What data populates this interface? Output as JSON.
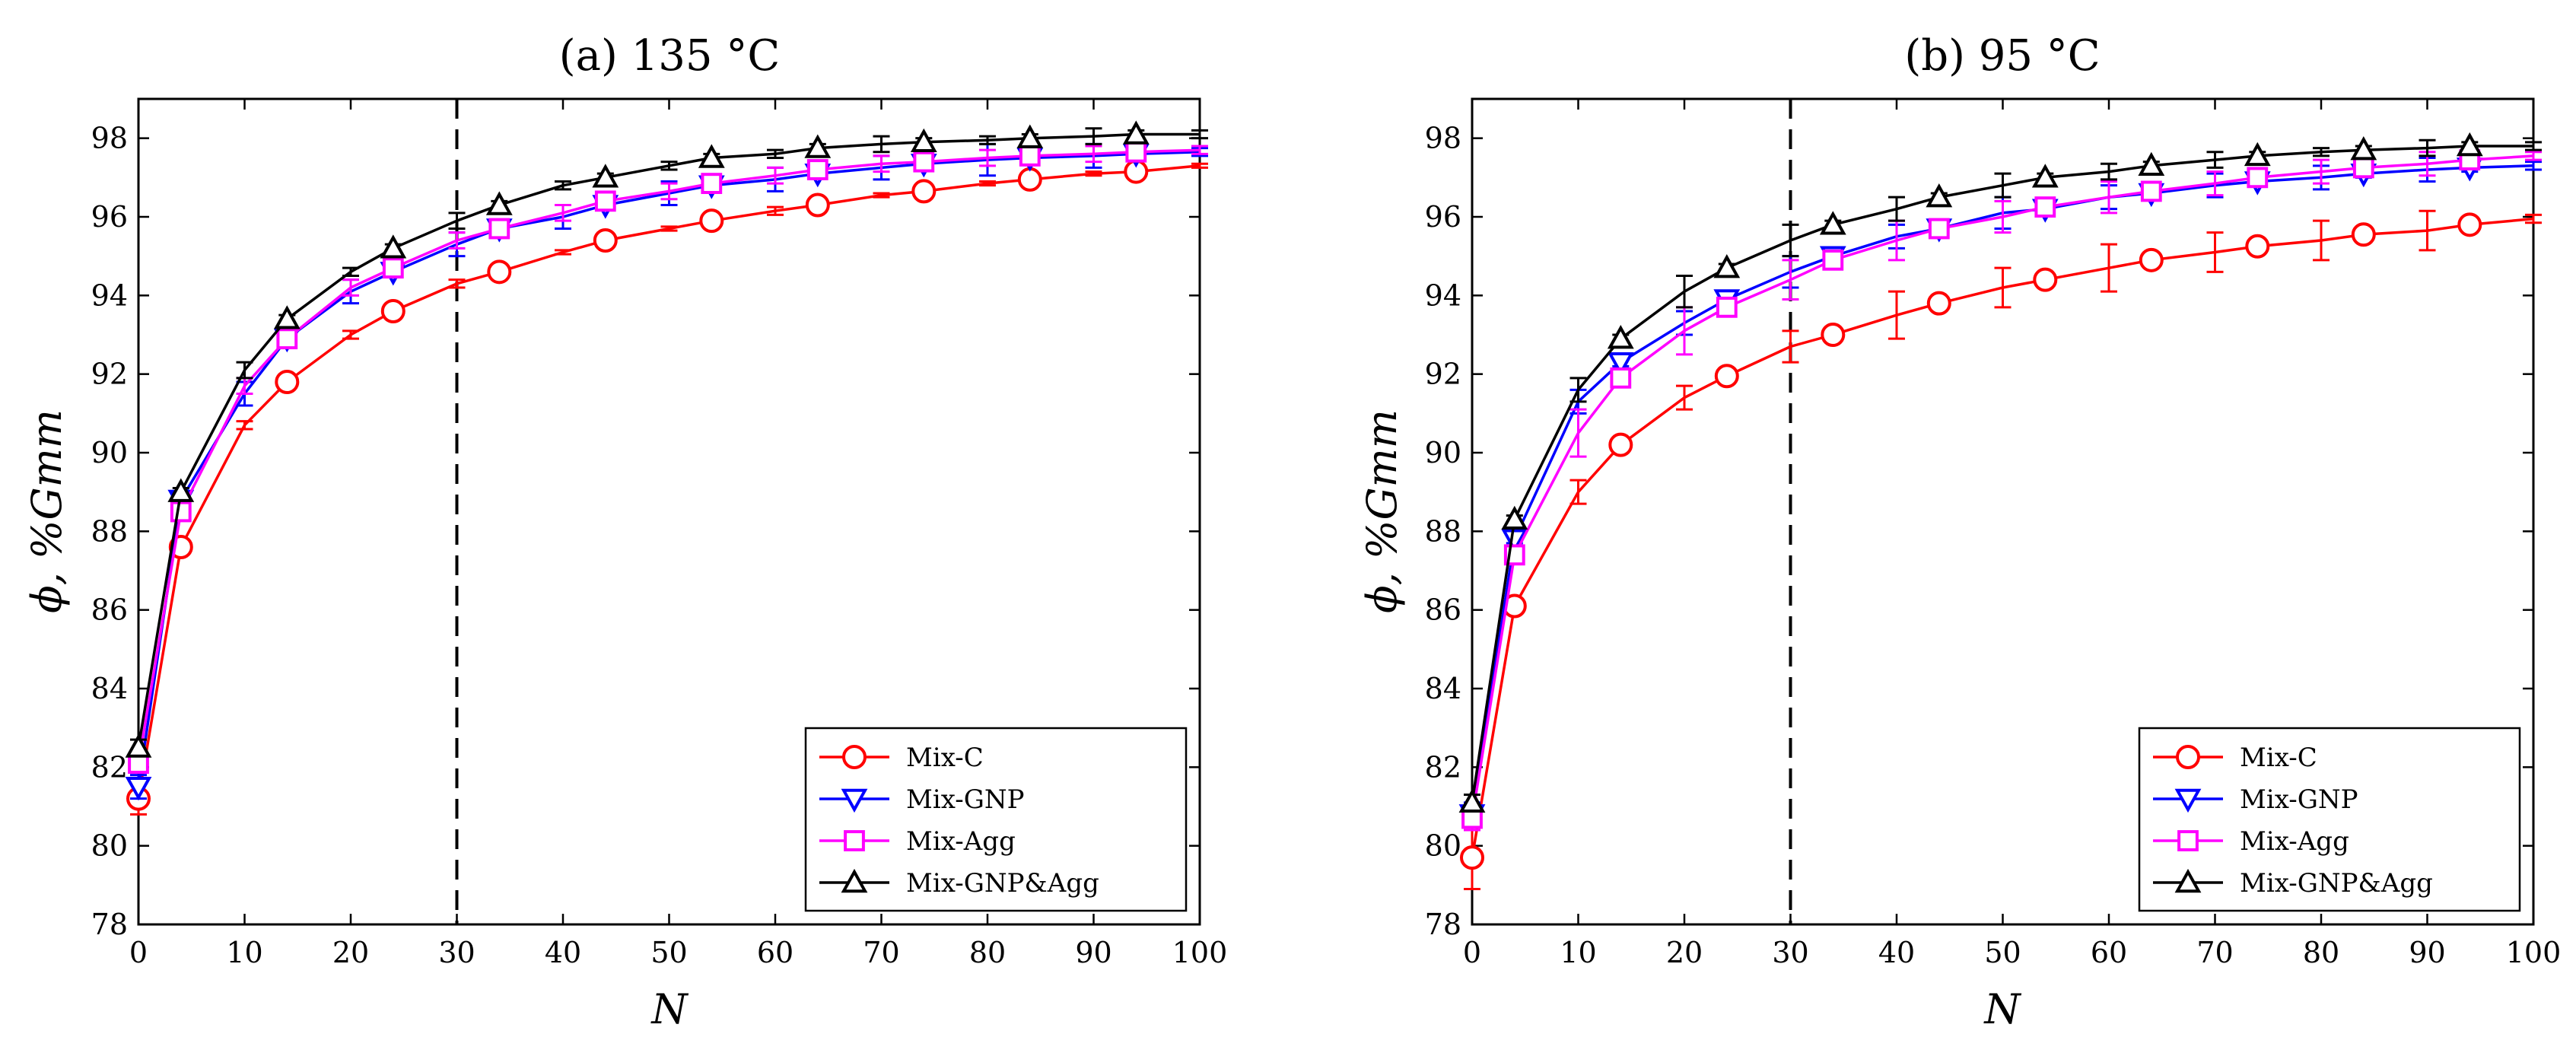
{
  "chart_data": [
    {
      "type": "line",
      "title": "(a) 135 °C",
      "xlabel": "N",
      "ylabel": "ϕ, %Gmm",
      "xlim": [
        0,
        100
      ],
      "ylim": [
        78,
        99
      ],
      "xticks": [
        0,
        10,
        20,
        30,
        40,
        50,
        60,
        70,
        80,
        90,
        100
      ],
      "yticks": [
        78,
        80,
        82,
        84,
        86,
        88,
        90,
        92,
        94,
        96,
        98
      ],
      "reference_line_x": 30,
      "legend_position": "bottom-right",
      "series": [
        {
          "name": "Mix-C",
          "color": "#ff0000",
          "marker": "circle",
          "x": [
            0,
            4,
            10,
            14,
            20,
            24,
            30,
            34,
            40,
            44,
            50,
            54,
            60,
            64,
            70,
            74,
            80,
            84,
            90,
            94,
            100
          ],
          "y": [
            81.2,
            87.6,
            90.7,
            91.8,
            93.0,
            93.6,
            94.3,
            94.6,
            95.1,
            95.4,
            95.7,
            95.9,
            96.15,
            96.3,
            96.55,
            96.65,
            96.85,
            96.95,
            97.1,
            97.15,
            97.3
          ],
          "err": [
            0.4,
            0.1,
            0.1,
            0.05,
            0.1,
            0.05,
            0.1,
            0.05,
            0.05,
            0.05,
            0.05,
            0.05,
            0.1,
            0.05,
            0.05,
            0.05,
            0.05,
            0.05,
            0.05,
            0.05,
            0.05
          ]
        },
        {
          "name": "Mix-GNP",
          "color": "#0000ff",
          "marker": "triangle-down",
          "x": [
            0,
            4,
            10,
            14,
            20,
            24,
            30,
            34,
            40,
            44,
            50,
            54,
            60,
            64,
            70,
            74,
            80,
            84,
            90,
            94,
            100
          ],
          "y": [
            81.5,
            88.8,
            91.5,
            92.9,
            94.1,
            94.6,
            95.3,
            95.7,
            96.0,
            96.3,
            96.6,
            96.8,
            96.95,
            97.1,
            97.25,
            97.35,
            97.45,
            97.5,
            97.55,
            97.6,
            97.65
          ],
          "err": [
            0.3,
            0.1,
            0.3,
            0.1,
            0.3,
            0.1,
            0.3,
            0.1,
            0.3,
            0.1,
            0.3,
            0.1,
            0.3,
            0.1,
            0.3,
            0.1,
            0.4,
            0.1,
            0.3,
            0.1,
            0.1
          ]
        },
        {
          "name": "Mix-Agg",
          "color": "#ff00ff",
          "marker": "square",
          "x": [
            0,
            4,
            10,
            14,
            20,
            24,
            30,
            34,
            40,
            44,
            50,
            54,
            60,
            64,
            70,
            74,
            80,
            84,
            90,
            94,
            100
          ],
          "y": [
            82.1,
            88.5,
            91.7,
            92.9,
            94.2,
            94.7,
            95.4,
            95.7,
            96.1,
            96.4,
            96.65,
            96.85,
            97.05,
            97.2,
            97.35,
            97.4,
            97.5,
            97.55,
            97.6,
            97.65,
            97.7
          ],
          "err": [
            0.2,
            0.1,
            0.2,
            0.1,
            0.2,
            0.1,
            0.2,
            0.1,
            0.2,
            0.1,
            0.2,
            0.1,
            0.2,
            0.1,
            0.2,
            0.1,
            0.2,
            0.1,
            0.2,
            0.1,
            0.1
          ]
        },
        {
          "name": "Mix-GNP&Agg",
          "color": "#000000",
          "marker": "triangle-up",
          "x": [
            0,
            4,
            10,
            14,
            20,
            24,
            30,
            34,
            40,
            44,
            50,
            54,
            60,
            64,
            70,
            74,
            80,
            84,
            90,
            94,
            100
          ],
          "y": [
            82.5,
            89.0,
            92.1,
            93.4,
            94.6,
            95.2,
            95.9,
            96.3,
            96.8,
            97.0,
            97.3,
            97.5,
            97.6,
            97.75,
            97.85,
            97.9,
            97.95,
            98.0,
            98.05,
            98.1,
            98.1
          ],
          "err": [
            0.2,
            0.1,
            0.2,
            0.1,
            0.1,
            0.1,
            0.2,
            0.1,
            0.1,
            0.1,
            0.1,
            0.1,
            0.1,
            0.1,
            0.2,
            0.1,
            0.1,
            0.1,
            0.2,
            0.1,
            0.1
          ]
        }
      ]
    },
    {
      "type": "line",
      "title": "(b) 95 °C",
      "xlabel": "N",
      "ylabel": "ϕ, %Gmm",
      "xlim": [
        0,
        100
      ],
      "ylim": [
        78,
        99
      ],
      "xticks": [
        0,
        10,
        20,
        30,
        40,
        50,
        60,
        70,
        80,
        90,
        100
      ],
      "yticks": [
        78,
        80,
        82,
        84,
        86,
        88,
        90,
        92,
        94,
        96,
        98
      ],
      "reference_line_x": 30,
      "legend_position": "bottom-right",
      "series": [
        {
          "name": "Mix-C",
          "color": "#ff0000",
          "marker": "circle",
          "x": [
            0,
            4,
            10,
            14,
            20,
            24,
            30,
            34,
            40,
            44,
            50,
            54,
            60,
            64,
            70,
            74,
            80,
            84,
            90,
            94,
            100
          ],
          "y": [
            79.7,
            86.1,
            89.0,
            90.2,
            91.4,
            91.95,
            92.7,
            93.0,
            93.5,
            93.8,
            94.2,
            94.4,
            94.7,
            94.9,
            95.1,
            95.25,
            95.4,
            95.55,
            95.65,
            95.8,
            95.95
          ],
          "err": [
            0.8,
            0.1,
            0.3,
            0.1,
            0.3,
            0.1,
            0.4,
            0.1,
            0.6,
            0.1,
            0.5,
            0.1,
            0.6,
            0.1,
            0.5,
            0.1,
            0.5,
            0.1,
            0.5,
            0.1,
            0.1
          ]
        },
        {
          "name": "Mix-GNP",
          "color": "#0000ff",
          "marker": "triangle-down",
          "x": [
            0,
            4,
            10,
            14,
            20,
            24,
            30,
            34,
            40,
            44,
            50,
            54,
            60,
            64,
            70,
            74,
            80,
            84,
            90,
            94,
            100
          ],
          "y": [
            80.8,
            87.8,
            91.3,
            92.3,
            93.3,
            93.9,
            94.6,
            95.0,
            95.5,
            95.7,
            96.1,
            96.2,
            96.5,
            96.6,
            96.8,
            96.9,
            97.0,
            97.1,
            97.2,
            97.25,
            97.3
          ],
          "err": [
            0.3,
            0.1,
            0.3,
            0.1,
            0.3,
            0.1,
            0.4,
            0.1,
            0.3,
            0.1,
            0.4,
            0.1,
            0.3,
            0.1,
            0.3,
            0.1,
            0.3,
            0.1,
            0.3,
            0.1,
            0.1
          ]
        },
        {
          "name": "Mix-Agg",
          "color": "#ff00ff",
          "marker": "square",
          "x": [
            0,
            4,
            10,
            14,
            20,
            24,
            30,
            34,
            40,
            44,
            50,
            54,
            60,
            64,
            70,
            74,
            80,
            84,
            90,
            94,
            100
          ],
          "y": [
            80.7,
            87.4,
            90.5,
            91.9,
            93.1,
            93.7,
            94.4,
            94.9,
            95.4,
            95.7,
            96.0,
            96.25,
            96.5,
            96.65,
            96.85,
            97.0,
            97.15,
            97.25,
            97.35,
            97.45,
            97.55
          ],
          "err": [
            0.3,
            0.1,
            0.6,
            0.1,
            0.6,
            0.1,
            0.5,
            0.1,
            0.5,
            0.1,
            0.4,
            0.1,
            0.4,
            0.1,
            0.3,
            0.1,
            0.3,
            0.1,
            0.3,
            0.1,
            0.1
          ]
        },
        {
          "name": "Mix-GNP&Agg",
          "color": "#000000",
          "marker": "triangle-up",
          "x": [
            0,
            4,
            10,
            14,
            20,
            24,
            30,
            34,
            40,
            44,
            50,
            54,
            60,
            64,
            70,
            74,
            80,
            84,
            90,
            94,
            100
          ],
          "y": [
            81.1,
            88.3,
            91.6,
            92.9,
            94.1,
            94.7,
            95.4,
            95.8,
            96.2,
            96.5,
            96.8,
            97.0,
            97.15,
            97.3,
            97.45,
            97.55,
            97.65,
            97.7,
            97.75,
            97.8,
            97.8
          ],
          "err": [
            0.2,
            0.1,
            0.3,
            0.1,
            0.4,
            0.1,
            0.4,
            0.1,
            0.3,
            0.1,
            0.3,
            0.1,
            0.2,
            0.1,
            0.2,
            0.1,
            0.1,
            0.1,
            0.2,
            0.1,
            0.1
          ]
        }
      ]
    }
  ]
}
